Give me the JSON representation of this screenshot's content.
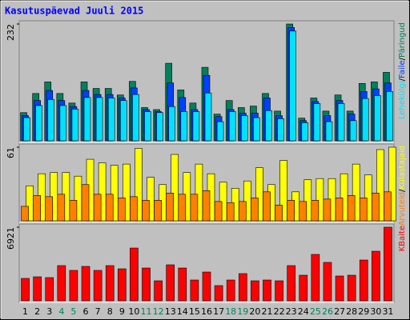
{
  "chart_data": [
    {
      "type": "bar",
      "title": "Kasutuspäevad Juuli 2015",
      "legend_separator": "/",
      "ylim": [
        0,
        232
      ],
      "yticks": [
        232
      ],
      "series": [
        {
          "name": "Päringud",
          "color": "#00805c",
          "values": [
            56,
            94,
            117,
            94,
            75,
            117,
            104,
            104,
            91,
            118,
            66,
            62,
            154,
            101,
            75,
            146,
            53,
            80,
            66,
            69,
            94,
            59,
            232,
            45,
            85,
            59,
            91,
            59,
            114,
            117,
            136
          ]
        },
        {
          "name": "Faile",
          "color": "#0040ff",
          "values": [
            50,
            80,
            100,
            80,
            68,
            100,
            92,
            92,
            85,
            105,
            62,
            58,
            115,
            86,
            62,
            130,
            48,
            62,
            55,
            55,
            85,
            50,
            225,
            40,
            78,
            50,
            80,
            53,
            98,
            103,
            115
          ]
        },
        {
          "name": "Lehekülgi",
          "color": "#00e0ff",
          "values": [
            46,
            70,
            82,
            70,
            63,
            86,
            86,
            85,
            80,
            92,
            58,
            56,
            68,
            58,
            58,
            95,
            38,
            58,
            50,
            46,
            60,
            44,
            218,
            36,
            74,
            38,
            74,
            40,
            84,
            90,
            98
          ]
        }
      ]
    },
    {
      "type": "bar",
      "legend_separator": "/",
      "ylim": [
        0,
        61
      ],
      "yticks": [
        61
      ],
      "series": [
        {
          "name": "Külastajaid",
          "color": "#ffff00",
          "values": [
            29,
            39,
            40,
            40,
            37,
            51,
            48,
            46,
            47,
            60,
            36,
            30,
            55,
            40,
            47,
            39,
            32,
            27,
            33,
            44,
            30,
            50,
            24,
            34,
            35,
            35,
            39,
            47,
            38,
            59,
            61
          ]
        },
        {
          "name": "Arvuteid",
          "color": "#ff8000",
          "values": [
            12,
            21,
            20,
            22,
            17,
            30,
            22,
            22,
            19,
            20,
            17,
            17,
            23,
            22,
            22,
            25,
            16,
            15,
            16,
            19,
            24,
            13,
            17,
            16,
            17,
            18,
            19,
            21,
            19,
            23,
            24
          ]
        }
      ]
    },
    {
      "type": "bar",
      "ylim": [
        0,
        6921
      ],
      "yticks": [
        6921
      ],
      "categories": [
        "1",
        "2",
        "3",
        "4",
        "5",
        "6",
        "7",
        "8",
        "9",
        "10",
        "11",
        "12",
        "13",
        "14",
        "15",
        "16",
        "17",
        "18",
        "19",
        "20",
        "21",
        "22",
        "23",
        "24",
        "25",
        "26",
        "27",
        "28",
        "29",
        "30",
        "31"
      ],
      "category_colors": [
        "#000000",
        "#000000",
        "#000000",
        "#00805c",
        "#00805c",
        "#000000",
        "#000000",
        "#000000",
        "#000000",
        "#000000",
        "#00805c",
        "#00805c",
        "#000000",
        "#000000",
        "#000000",
        "#000000",
        "#000000",
        "#00805c",
        "#00805c",
        "#000000",
        "#000000",
        "#000000",
        "#000000",
        "#000000",
        "#00805c",
        "#00805c",
        "#000000",
        "#000000",
        "#000000",
        "#000000",
        "#000000"
      ],
      "series": [
        {
          "name": "KBaite",
          "color": "#ff0000",
          "values": [
            2106,
            2256,
            2181,
            3309,
            2858,
            3234,
            2858,
            3309,
            3008,
            4963,
            3083,
            1880,
            3384,
            3083,
            1955,
            2707,
            1429,
            1955,
            2557,
            1880,
            1955,
            1880,
            3309,
            2406,
            4362,
            3610,
            2331,
            2406,
            3835,
            4662,
            6921
          ]
        }
      ]
    }
  ]
}
